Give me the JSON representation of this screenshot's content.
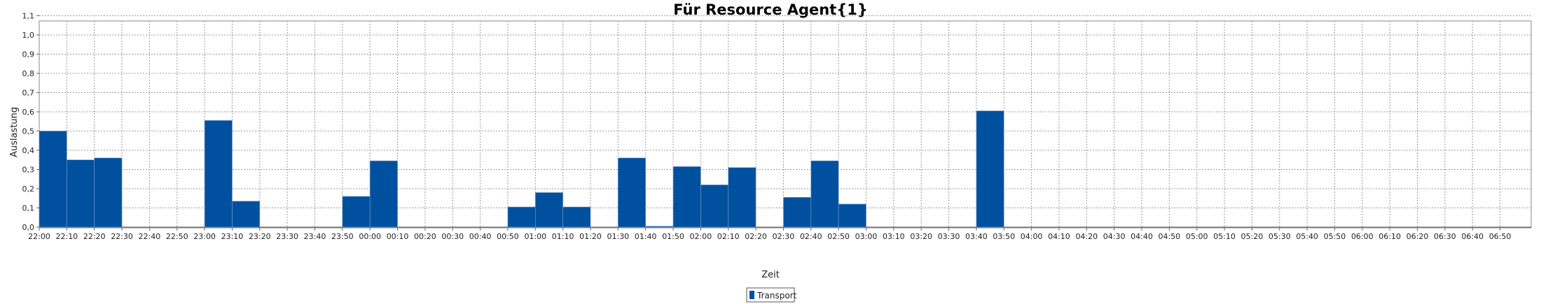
{
  "chart_data": {
    "type": "bar",
    "title": "Für Resource Agent{1}",
    "xlabel": "Zeit",
    "ylabel": "Auslastung",
    "ylim": [
      0,
      1.15
    ],
    "grid": true,
    "legend_placement": "bottom-center",
    "bar_color": "#0050a0",
    "categories": [
      "22:00",
      "22:10",
      "22:20",
      "22:30",
      "22:40",
      "22:50",
      "23:00",
      "23:10",
      "23:20",
      "23:30",
      "23:40",
      "23:50",
      "00:00",
      "00:10",
      "00:20",
      "00:30",
      "00:40",
      "00:50",
      "01:00",
      "01:10",
      "01:20",
      "01:30",
      "01:40",
      "01:50",
      "02:00",
      "02:10",
      "02:20",
      "02:30",
      "02:40",
      "02:50",
      "03:00",
      "03:10",
      "03:20",
      "03:30",
      "03:40",
      "03:50",
      "04:00",
      "04:10",
      "04:20",
      "04:30",
      "04:40",
      "04:50",
      "05:00",
      "05:10",
      "05:20",
      "05:30",
      "05:40",
      "05:50",
      "06:00",
      "06:10",
      "06:20",
      "06:30",
      "06:40",
      "06:50"
    ],
    "y_ticks": [
      "0,0",
      "0,1",
      "0,2",
      "0,3",
      "0,4",
      "0,5",
      "0,6",
      "0,7",
      "0,8",
      "0,9",
      "1,0",
      "1,1"
    ],
    "series": [
      {
        "name": "Transport",
        "values": [
          0.5,
          0.35,
          0.36,
          0,
          0,
          0,
          0.555,
          0.135,
          0,
          0,
          0,
          0.16,
          0.345,
          0,
          0,
          0,
          0,
          0.105,
          0.18,
          0.105,
          0,
          0.36,
          0.005,
          0.315,
          0.22,
          0.31,
          0,
          0.155,
          0.345,
          0.12,
          0,
          0,
          0,
          0,
          0.605,
          0,
          0,
          0,
          0,
          0,
          0,
          0,
          0,
          0,
          0,
          0,
          0,
          0,
          0,
          0,
          0,
          0,
          0,
          0
        ]
      }
    ]
  }
}
